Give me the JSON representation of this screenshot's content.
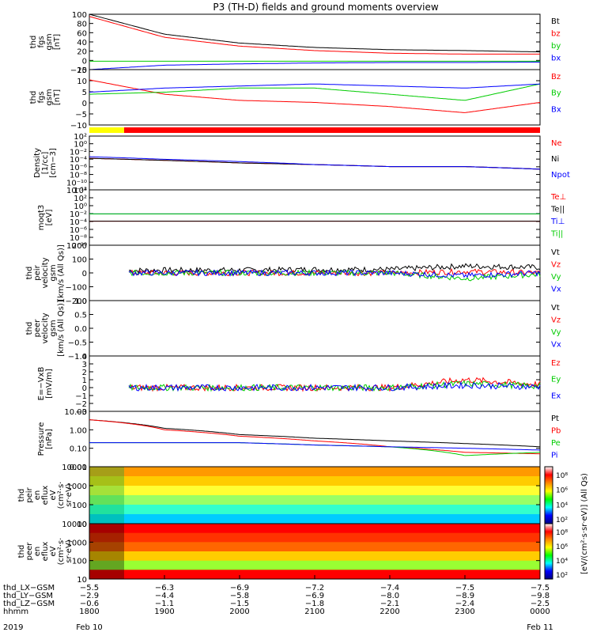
{
  "title": "P3 (TH-D) fields and ground moments overview",
  "panels": [
    {
      "id": "fgs-gsm",
      "ylabel": [
        "thd",
        "fgs",
        "gsm",
        "[nT]"
      ],
      "yticks": [
        "100",
        "80",
        "60",
        "40",
        "20",
        "0",
        "−20"
      ],
      "series_labels": [
        {
          "text": "Bt",
          "color": "#000000"
        },
        {
          "text": "bz",
          "color": "#ff0000"
        },
        {
          "text": "by",
          "color": "#00cc00"
        },
        {
          "text": "bx",
          "color": "#0000ff"
        }
      ]
    },
    {
      "id": "fgs-gsm-zoom",
      "ylabel": [
        "thd",
        "fgs",
        "gsm",
        "[nT]"
      ],
      "yticks": [
        "15",
        "10",
        "5",
        "0",
        "−5",
        "−10"
      ],
      "series_labels": [
        {
          "text": "Bz",
          "color": "#ff0000"
        },
        {
          "text": "By",
          "color": "#00cc00"
        },
        {
          "text": "Bx",
          "color": "#0000ff"
        }
      ]
    },
    {
      "id": "density",
      "ylabel": [
        "Density",
        "[1/cc]",
        "[cm−3]"
      ],
      "yticks": [
        "10²",
        "10⁰",
        "10⁻²",
        "10⁻⁴",
        "10⁻⁶",
        "10⁻⁸",
        "10⁻¹⁰",
        "10⁻¹²"
      ],
      "series_labels": [
        {
          "text": "Ne",
          "color": "#ff0000"
        },
        {
          "text": "Ni",
          "color": "#000000"
        },
        {
          "text": "Npot",
          "color": "#0000ff"
        }
      ]
    },
    {
      "id": "temperature",
      "ylabel": [
        "moqt3",
        "[eV]"
      ],
      "yticks": [
        "10⁴",
        "10²",
        "10⁰",
        "10⁻²",
        "10⁻⁴",
        "10⁻⁶",
        "10⁻⁸",
        "10⁻¹⁰"
      ],
      "series_labels": [
        {
          "text": "Te⊥",
          "color": "#ff0000"
        },
        {
          "text": "Te||",
          "color": "#000000"
        },
        {
          "text": "Ti⊥",
          "color": "#0000ff"
        },
        {
          "text": "Ti||",
          "color": "#00cc00"
        }
      ]
    },
    {
      "id": "peir-velocity",
      "ylabel": [
        "thd",
        "peir",
        "velocity",
        "gsm",
        "[km/s (All Qs)]"
      ],
      "yticks": [
        "200",
        "100",
        "0",
        "−100",
        "−200"
      ],
      "series_labels": [
        {
          "text": "Vt",
          "color": "#000000"
        },
        {
          "text": "Vz",
          "color": "#ff0000"
        },
        {
          "text": "Vy",
          "color": "#00cc00"
        },
        {
          "text": "Vx",
          "color": "#0000ff"
        }
      ]
    },
    {
      "id": "peer-velocity",
      "ylabel": [
        "thd",
        "peer",
        "velocity",
        "gsm",
        "[km/s (All Qs)]"
      ],
      "yticks": [
        "1.0",
        "0.5",
        "0.0",
        "−0.5",
        "−1.0"
      ],
      "series_labels": [
        {
          "text": "Vt",
          "color": "#000000"
        },
        {
          "text": "Vz",
          "color": "#ff0000"
        },
        {
          "text": "Vy",
          "color": "#00cc00"
        },
        {
          "text": "Vx",
          "color": "#0000ff"
        }
      ]
    },
    {
      "id": "efield",
      "ylabel": [
        "E=−VxB",
        "[mV/m]"
      ],
      "yticks": [
        "4",
        "3",
        "2",
        "1",
        "0",
        "−1",
        "−2",
        "−3"
      ],
      "series_labels": [
        {
          "text": "Ez",
          "color": "#ff0000"
        },
        {
          "text": "Ey",
          "color": "#00cc00"
        },
        {
          "text": "Ex",
          "color": "#0000ff"
        }
      ]
    },
    {
      "id": "pressure",
      "ylabel": [
        "Pressure",
        "[nPa]"
      ],
      "yticks": [
        "10.00",
        "1.00",
        "0.10",
        "0.01"
      ],
      "series_labels": [
        {
          "text": "Pt",
          "color": "#000000"
        },
        {
          "text": "Pb",
          "color": "#ff0000"
        },
        {
          "text": "Pe",
          "color": "#00cc00"
        },
        {
          "text": "Pi",
          "color": "#0000ff"
        }
      ]
    },
    {
      "id": "peir-eflux",
      "ylabel": [
        "thd",
        "peir",
        "en",
        "eflux",
        "eV",
        "(cm²·s·",
        "sr·eV)"
      ],
      "yticks": [
        "10000",
        "1000",
        "100",
        "10"
      ]
    },
    {
      "id": "peer-eflux",
      "ylabel": [
        "thd",
        "peer",
        "en",
        "eflux",
        "eV",
        "(cm²·s·",
        "sr·eV)"
      ],
      "yticks": [
        "10000",
        "1000",
        "100",
        "10"
      ]
    }
  ],
  "colorbars": [
    {
      "ticks": [
        "10⁸",
        "10⁶",
        "10⁴",
        "10²"
      ]
    },
    {
      "ticks": [
        "10⁸",
        "10⁶",
        "10⁴",
        "10²"
      ]
    }
  ],
  "colorbar_label": "[eV/(cm²·s·sr·eV)] (All Qs)",
  "xaxis": {
    "rows": [
      {
        "label": "thd_LX−GSM",
        "values": [
          "−5.5",
          "−6.3",
          "−6.9",
          "−7.2",
          "−7.4",
          "−7.5",
          "−7.5"
        ]
      },
      {
        "label": "thd_LY−GSM",
        "values": [
          "−2.9",
          "−4.4",
          "−5.8",
          "−6.9",
          "−8.0",
          "−8.9",
          "−9.8"
        ]
      },
      {
        "label": "thd_LZ−GSM",
        "values": [
          "−0.6",
          "−1.1",
          "−1.5",
          "−1.8",
          "−2.1",
          "−2.4",
          "−2.5"
        ]
      },
      {
        "label": "hhmm",
        "values": [
          "1800",
          "1900",
          "2000",
          "2100",
          "2200",
          "2300",
          "0000"
        ]
      }
    ],
    "year": "2019",
    "date_start": "Feb 10",
    "date_end": "Feb 11"
  },
  "chart_data": {
    "type": "line",
    "title": "P3 (TH-D) fields and ground moments overview",
    "x": [
      "1800",
      "1900",
      "2000",
      "2100",
      "2200",
      "2300",
      "0000"
    ],
    "panels": [
      {
        "ylabel": "thd fgs gsm [nT]",
        "ylim": [
          -25,
          100
        ],
        "series": [
          {
            "name": "Bt",
            "values": [
              100,
              55,
              35,
              25,
              20,
              18,
              15
            ]
          },
          {
            "name": "bz",
            "values": [
              95,
              48,
              28,
              18,
              12,
              10,
              10
            ]
          },
          {
            "name": "by",
            "values": [
              -6,
              -6,
              -6,
              -6,
              -6,
              -6,
              -6
            ]
          },
          {
            "name": "bx",
            "values": [
              -25,
              -15,
              -12,
              -10,
              -9,
              -9,
              -8
            ]
          }
        ]
      },
      {
        "ylabel": "thd fgs gsm [nT]",
        "ylim": [
          -12,
          15
        ],
        "series": [
          {
            "name": "Bz",
            "values": [
              10,
              3,
              0,
              -1,
              -3,
              -6,
              -1
            ]
          },
          {
            "name": "By",
            "values": [
              3,
              4,
              6,
              6,
              3,
              0,
              8
            ]
          },
          {
            "name": "Bx",
            "values": [
              4,
              6,
              7,
              8,
              7,
              6,
              8
            ]
          }
        ]
      },
      {
        "ylabel": "Density [1/cc] [cm-3]",
        "scale": "log",
        "series": [
          {
            "name": "Ne",
            "values": [
              1,
              0.8,
              0.6,
              0.5,
              0.4,
              0.4,
              0.3
            ]
          },
          {
            "name": "Ni",
            "values": [
              1,
              0.8,
              0.6,
              0.5,
              0.4,
              0.4,
              0.3
            ]
          },
          {
            "name": "Npot",
            "values": [
              1.2,
              0.9,
              0.7,
              0.5,
              0.4,
              0.4,
              0.3
            ]
          }
        ]
      },
      {
        "ylabel": "moqt3 [eV]",
        "scale": "log",
        "series": [
          {
            "name": "Te⊥",
            "values": [
              1000,
              1000,
              1000,
              1000,
              1000,
              1000,
              1000
            ]
          },
          {
            "name": "Te||",
            "values": [
              1000,
              1000,
              1000,
              1000,
              1000,
              1000,
              1000
            ]
          },
          {
            "name": "Ti⊥",
            "values": [
              2000,
              2000,
              2000,
              2000,
              2000,
              2000,
              2000
            ]
          },
          {
            "name": "Ti||",
            "values": [
              2000,
              2000,
              2000,
              2000,
              2000,
              2000,
              2000
            ]
          }
        ]
      },
      {
        "ylabel": "thd peir velocity gsm [km/s (All Qs)]",
        "ylim": [
          -200,
          200
        ],
        "series": [
          {
            "name": "Vt",
            "values": [
              15,
              20,
              20,
              25,
              25,
              50,
              40
            ]
          },
          {
            "name": "Vz",
            "values": [
              0,
              0,
              0,
              0,
              0,
              10,
              0
            ]
          },
          {
            "name": "Vy",
            "values": [
              0,
              0,
              0,
              0,
              0,
              -40,
              -10
            ]
          },
          {
            "name": "Vx",
            "values": [
              0,
              0,
              0,
              0,
              0,
              -20,
              0
            ]
          }
        ]
      },
      {
        "ylabel": "thd peer velocity gsm [km/s (All Qs)]",
        "ylim": [
          -1,
          1
        ],
        "series": []
      },
      {
        "ylabel": "E=-VxB [mV/m]",
        "ylim": [
          -3,
          4
        ],
        "series": [
          {
            "name": "Ez",
            "values": [
              0,
              0,
              0,
              0,
              0,
              1,
              0.4
            ]
          },
          {
            "name": "Ey",
            "values": [
              0,
              0,
              0,
              0,
              0,
              0.5,
              0.2
            ]
          },
          {
            "name": "Ex",
            "values": [
              0,
              0,
              0,
              0,
              0,
              0.3,
              0.1
            ]
          }
        ]
      },
      {
        "ylabel": "Pressure [nPa]",
        "scale": "log",
        "ylim": [
          0.01,
          10
        ],
        "series": [
          {
            "name": "Pt",
            "values": [
              3.5,
              1.2,
              0.55,
              0.35,
              0.25,
              0.18,
              0.12
            ]
          },
          {
            "name": "Pb",
            "values": [
              3.5,
              1.0,
              0.45,
              0.25,
              0.12,
              0.06,
              0.05
            ]
          },
          {
            "name": "Pe",
            "values": [
              0.2,
              0.2,
              0.2,
              0.15,
              0.12,
              0.04,
              0.06
            ]
          },
          {
            "name": "Pi",
            "values": [
              0.2,
              0.2,
              0.2,
              0.15,
              0.12,
              0.1,
              0.08
            ]
          }
        ]
      },
      {
        "type": "heatmap",
        "ylabel": "thd peir en eflux",
        "scale": "log",
        "ylim": [
          5,
          25000
        ]
      },
      {
        "type": "heatmap",
        "ylabel": "thd peer en eflux",
        "scale": "log",
        "ylim": [
          5,
          25000
        ]
      }
    ]
  }
}
